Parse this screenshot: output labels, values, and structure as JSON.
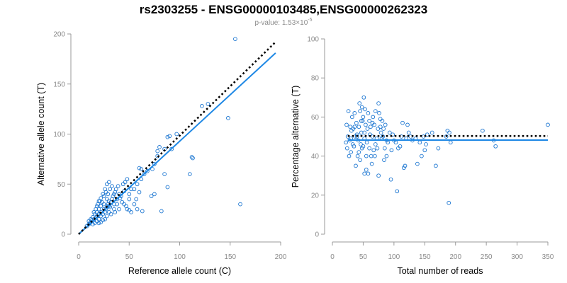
{
  "figure": {
    "title": "rs2303255 - ENSG00000103485,ENSG00000262323",
    "subtitle": {
      "prefix": "p-value: 1.53×10",
      "exponent": "-5"
    }
  },
  "colors": {
    "points": "#1a75d1",
    "fit": "#1e88e5",
    "reference": "#000000"
  },
  "chart_data": [
    {
      "type": "scatter",
      "title": "",
      "xlabel": "Reference allele count (C)",
      "ylabel": "Alternative allele count (T)",
      "xlim": [
        0,
        200
      ],
      "ylim": [
        0,
        200
      ],
      "xticks": [
        0,
        50,
        100,
        150,
        200
      ],
      "yticks": [
        0,
        50,
        100,
        150,
        200
      ],
      "grid": false,
      "reference_line": {
        "style": "dotted",
        "color": "#000000",
        "from": [
          0,
          0
        ],
        "to": [
          195,
          192
        ]
      },
      "fit_line": {
        "style": "solid",
        "color": "#1e88e5",
        "from": [
          0,
          0
        ],
        "to": [
          195,
          181
        ]
      },
      "points": [
        [
          155,
          195
        ],
        [
          148,
          116
        ],
        [
          160,
          30
        ],
        [
          128,
          130
        ],
        [
          122,
          128
        ],
        [
          112,
          77
        ],
        [
          113,
          76
        ],
        [
          110,
          60
        ],
        [
          92,
          85
        ],
        [
          88,
          97
        ],
        [
          90,
          98
        ],
        [
          97,
          100
        ],
        [
          85,
          85
        ],
        [
          80,
          87
        ],
        [
          78,
          83
        ],
        [
          78,
          78
        ],
        [
          75,
          70
        ],
        [
          73,
          65
        ],
        [
          85,
          60
        ],
        [
          88,
          47
        ],
        [
          82,
          23
        ],
        [
          75,
          40
        ],
        [
          72,
          38
        ],
        [
          68,
          63
        ],
        [
          65,
          60
        ],
        [
          62,
          65
        ],
        [
          60,
          66
        ],
        [
          62,
          55
        ],
        [
          58,
          50
        ],
        [
          55,
          45
        ],
        [
          60,
          42
        ],
        [
          52,
          45
        ],
        [
          50,
          40
        ],
        [
          50,
          35
        ],
        [
          45,
          43
        ],
        [
          42,
          38
        ],
        [
          40,
          40
        ],
        [
          38,
          35
        ],
        [
          35,
          40
        ],
        [
          35,
          30
        ],
        [
          32,
          32
        ],
        [
          30,
          28
        ],
        [
          30,
          33
        ],
        [
          28,
          35
        ],
        [
          28,
          28
        ],
        [
          25,
          30
        ],
        [
          25,
          25
        ],
        [
          22,
          28
        ],
        [
          22,
          22
        ],
        [
          20,
          25
        ],
        [
          20,
          20
        ],
        [
          18,
          22
        ],
        [
          18,
          18
        ],
        [
          16,
          20
        ],
        [
          15,
          15
        ],
        [
          14,
          17
        ],
        [
          12,
          12
        ],
        [
          12,
          15
        ],
        [
          10,
          10
        ],
        [
          10,
          13
        ],
        [
          8,
          8
        ],
        [
          15,
          22
        ],
        [
          18,
          28
        ],
        [
          20,
          15
        ],
        [
          22,
          18
        ],
        [
          24,
          20
        ],
        [
          26,
          22
        ],
        [
          27,
          25
        ],
        [
          29,
          30
        ],
        [
          31,
          27
        ],
        [
          33,
          35
        ],
        [
          34,
          38
        ],
        [
          36,
          42
        ],
        [
          37,
          45
        ],
        [
          39,
          48
        ],
        [
          41,
          36
        ],
        [
          43,
          32
        ],
        [
          45,
          30
        ],
        [
          47,
          28
        ],
        [
          48,
          25
        ],
        [
          50,
          24
        ],
        [
          52,
          22
        ],
        [
          55,
          30
        ],
        [
          57,
          35
        ],
        [
          40,
          25
        ],
        [
          38,
          30
        ],
        [
          36,
          22
        ],
        [
          35,
          25
        ],
        [
          32,
          20
        ],
        [
          30,
          22
        ],
        [
          28,
          18
        ],
        [
          26,
          15
        ],
        [
          24,
          14
        ],
        [
          22,
          12
        ],
        [
          20,
          11
        ],
        [
          18,
          13
        ],
        [
          16,
          11
        ],
        [
          14,
          10
        ],
        [
          13,
          14
        ],
        [
          11,
          11
        ],
        [
          17,
          25
        ],
        [
          19,
          30
        ],
        [
          21,
          33
        ],
        [
          23,
          32
        ],
        [
          25,
          38
        ],
        [
          27,
          42
        ],
        [
          29,
          40
        ],
        [
          31,
          45
        ],
        [
          33,
          48
        ],
        [
          30,
          52
        ],
        [
          28,
          50
        ],
        [
          26,
          45
        ],
        [
          24,
          40
        ],
        [
          22,
          36
        ],
        [
          20,
          33
        ],
        [
          44,
          50
        ],
        [
          46,
          52
        ],
        [
          48,
          55
        ],
        [
          58,
          25
        ],
        [
          63,
          23
        ]
      ]
    },
    {
      "type": "scatter",
      "title": "",
      "xlabel": "Total number of reads",
      "ylabel": "Percentage alternative (T)",
      "xlim": [
        0,
        350
      ],
      "ylim": [
        0,
        100
      ],
      "xticks": [
        0,
        50,
        100,
        150,
        200,
        250,
        300,
        350
      ],
      "yticks": [
        0,
        20,
        40,
        60,
        80,
        100
      ],
      "grid": false,
      "reference_line": {
        "style": "dotted",
        "color": "#000000",
        "from": [
          25,
          50.3
        ],
        "to": [
          350,
          50.3
        ]
      },
      "fit_line": {
        "style": "solid",
        "color": "#1e88e5",
        "from": [
          25,
          48.2
        ],
        "to": [
          350,
          48.2
        ]
      },
      "points": [
        [
          350,
          56
        ],
        [
          262,
          48
        ],
        [
          265,
          45
        ],
        [
          244,
          53
        ],
        [
          187,
          53
        ],
        [
          190,
          52
        ],
        [
          192,
          47
        ],
        [
          189,
          16
        ],
        [
          185,
          50
        ],
        [
          172,
          44
        ],
        [
          168,
          35
        ],
        [
          162,
          52
        ],
        [
          154,
          51
        ],
        [
          152,
          46
        ],
        [
          150,
          43
        ],
        [
          148,
          50
        ],
        [
          145,
          40
        ],
        [
          142,
          47
        ],
        [
          138,
          36
        ],
        [
          135,
          49
        ],
        [
          130,
          48
        ],
        [
          127,
          50
        ],
        [
          124,
          52
        ],
        [
          122,
          56
        ],
        [
          120,
          49
        ],
        [
          118,
          35
        ],
        [
          116,
          34
        ],
        [
          114,
          57
        ],
        [
          112,
          50
        ],
        [
          110,
          45
        ],
        [
          107,
          44
        ],
        [
          105,
          22
        ],
        [
          103,
          47
        ],
        [
          100,
          48
        ],
        [
          98,
          51
        ],
        [
          96,
          43
        ],
        [
          93,
          52
        ],
        [
          90,
          47
        ],
        [
          88,
          48
        ],
        [
          86,
          56
        ],
        [
          85,
          44
        ],
        [
          83,
          54
        ],
        [
          81,
          58
        ],
        [
          80,
          49
        ],
        [
          79,
          52
        ],
        [
          78,
          59
        ],
        [
          76,
          62
        ],
        [
          75,
          67
        ],
        [
          74,
          54
        ],
        [
          73,
          44
        ],
        [
          72,
          49
        ],
        [
          70,
          46
        ],
        [
          69,
          40
        ],
        [
          67,
          43
        ],
        [
          65,
          57
        ],
        [
          64,
          36
        ],
        [
          62,
          55
        ],
        [
          61,
          51
        ],
        [
          60,
          44
        ],
        [
          58,
          62
        ],
        [
          57,
          54
        ],
        [
          56,
          47
        ],
        [
          55,
          33
        ],
        [
          54,
          56
        ],
        [
          53,
          64
        ],
        [
          52,
          49
        ],
        [
          51,
          70
        ],
        [
          50,
          60
        ],
        [
          49,
          58
        ],
        [
          48,
          44
        ],
        [
          47,
          52
        ],
        [
          46,
          46
        ],
        [
          45,
          38
        ],
        [
          44,
          67
        ],
        [
          43,
          55
        ],
        [
          42,
          48
        ],
        [
          41,
          40
        ],
        [
          40,
          51
        ],
        [
          39,
          57
        ],
        [
          38,
          35
        ],
        [
          37,
          50
        ],
        [
          36,
          62
        ],
        [
          35,
          45
        ],
        [
          34,
          54
        ],
        [
          33,
          46
        ],
        [
          32,
          60
        ],
        [
          31,
          53
        ],
        [
          30,
          42
        ],
        [
          29,
          55
        ],
        [
          28,
          48
        ],
        [
          27,
          40
        ],
        [
          26,
          63
        ],
        [
          25,
          50
        ],
        [
          24,
          44
        ],
        [
          23,
          56
        ],
        [
          22,
          47
        ],
        [
          52,
          31
        ],
        [
          58,
          31
        ],
        [
          75,
          30
        ],
        [
          84,
          38
        ],
        [
          95,
          28
        ],
        [
          66,
          60
        ],
        [
          70,
          63
        ],
        [
          78,
          55
        ],
        [
          82,
          50
        ],
        [
          88,
          40
        ],
        [
          48,
          65
        ],
        [
          45,
          63
        ],
        [
          60,
          58
        ],
        [
          63,
          40
        ],
        [
          40,
          50
        ],
        [
          36,
          55
        ],
        [
          30,
          49
        ],
        [
          55,
          40
        ],
        [
          50,
          45
        ],
        [
          47,
          58
        ],
        [
          52,
          52
        ],
        [
          43,
          42
        ],
        [
          65,
          50
        ],
        [
          68,
          56
        ]
      ]
    }
  ]
}
